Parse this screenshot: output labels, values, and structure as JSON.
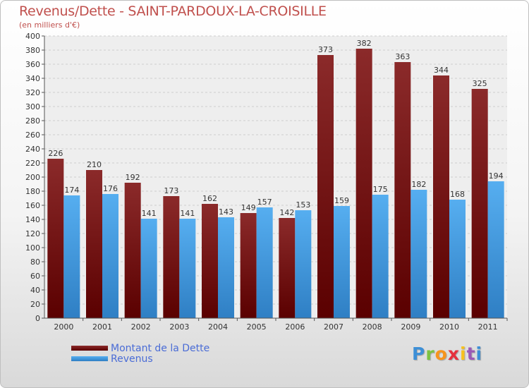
{
  "header": {
    "title": "Revenus/Dette - SAINT-PARDOUX-LA-CROISILLE",
    "subtitle": "(en milliers d'€)"
  },
  "chart_data": {
    "type": "bar",
    "categories": [
      "2000",
      "2001",
      "2002",
      "2003",
      "2004",
      "2005",
      "2006",
      "2007",
      "2008",
      "2009",
      "2010",
      "2011"
    ],
    "series": [
      {
        "name": "Montant de la Dette",
        "values": [
          226,
          210,
          192,
          173,
          162,
          149,
          142,
          373,
          382,
          363,
          344,
          325
        ],
        "color": "#8b1c1c"
      },
      {
        "name": "Revenus",
        "values": [
          174,
          176,
          141,
          141,
          143,
          157,
          153,
          159,
          175,
          182,
          168,
          194
        ],
        "color": "#4fa3e8"
      }
    ],
    "ylim": [
      0,
      400
    ],
    "ytick_step": 20,
    "grid": true,
    "legend": "bottom-left"
  },
  "legend": {
    "items": [
      {
        "label": "Montant de la Dette",
        "color": "#8b1c1c"
      },
      {
        "label": "Revenus",
        "color": "#4fa3e8"
      }
    ]
  },
  "brand": {
    "letters": [
      "P",
      "r",
      "o",
      "x",
      "i",
      "t",
      "i"
    ],
    "colors": [
      "#3d8fd6",
      "#7cc242",
      "#f7941d",
      "#e5313d",
      "#f7c11d",
      "#9b59b6",
      "#3d8fd6"
    ]
  }
}
